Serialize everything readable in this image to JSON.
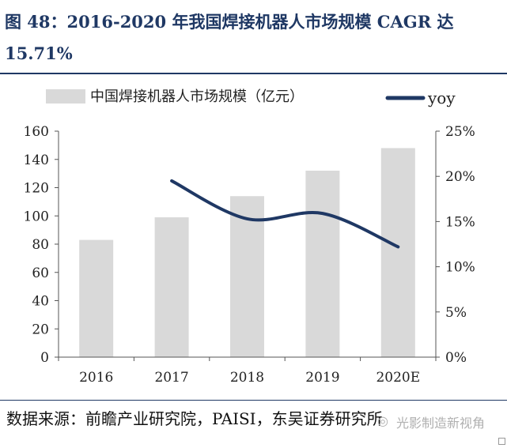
{
  "figure": {
    "title_line1": "图 48：2016-2020 年我国焊接机器人市场规模 CAGR 达",
    "title_line2": "15.71%",
    "source": "数据来源：前瞻产业研究院，PAISI，东吴证券研究所",
    "watermark": "光影制造新视角",
    "title_color": "#1f3864"
  },
  "chart_data": {
    "type": "bar",
    "categories": [
      "2016",
      "2017",
      "2018",
      "2019",
      "2020E"
    ],
    "series": [
      {
        "name": "中国焊接机器人市场规模（亿元）",
        "type": "bar",
        "axis": "left",
        "values": [
          83,
          99,
          114,
          132,
          148
        ],
        "color": "#d9d9d9"
      },
      {
        "name": "yoy",
        "type": "line",
        "axis": "right",
        "values": [
          null,
          19.5,
          15.3,
          15.9,
          12.2
        ],
        "color": "#1f3864"
      }
    ],
    "ylim_left": [
      0,
      160
    ],
    "yticks_left": [
      "0",
      "20",
      "40",
      "60",
      "80",
      "100",
      "120",
      "140",
      "160"
    ],
    "ylim_right": [
      0,
      25
    ],
    "yticks_right": [
      "0%",
      "5%",
      "10%",
      "15%",
      "20%",
      "25%"
    ],
    "legend": "top",
    "grid": false
  }
}
